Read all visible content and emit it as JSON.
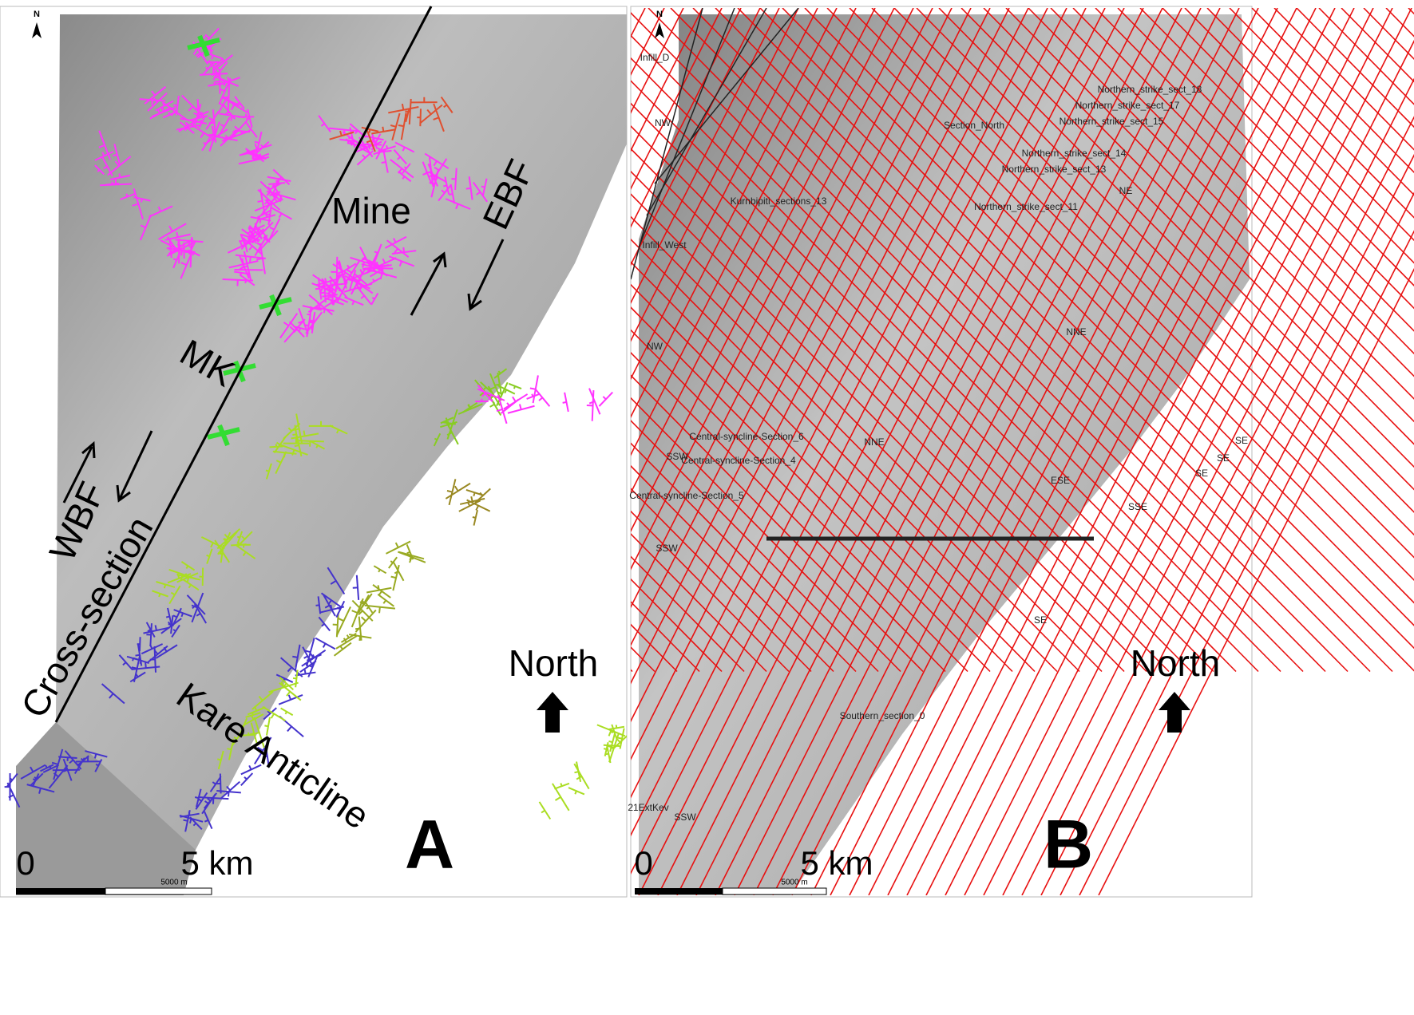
{
  "panels": [
    {
      "letter": "A",
      "north_arrow": "N",
      "north_label": "North",
      "scale": {
        "zero": "0",
        "distance": "5 km",
        "bar": "5000 m"
      },
      "annotations": [
        "Mine",
        "EBF",
        "MK",
        "WBF",
        "Cross-section",
        "Kare Anticline"
      ]
    },
    {
      "letter": "B",
      "north_arrow": "N",
      "north_label": "North",
      "scale": {
        "zero": "0",
        "distance": "5 km",
        "bar": "5000 m"
      },
      "annotations": [
        "Infill_D",
        "Infill_West",
        "Section_North",
        "Northern_strike_sect_18",
        "Northern_strike_sect_17",
        "Northern_strike_sect_15",
        "Northern_strike_sect_14",
        "Northern_strike_sect_13",
        "Northern_strike_sect_11",
        "Kurnbipiti_sections_13",
        "Central-syncline-Section_6",
        "Central-syncline-Section_4",
        "Central-syncline-Section_5",
        "Southern_section_0",
        "21ExtKev",
        "SE",
        "SE",
        "SE",
        "SE",
        "SSE",
        "SSW",
        "SSW",
        "SSW",
        "NW",
        "NW",
        "NNE",
        "NNE",
        "NE",
        "ESE"
      ]
    }
  ]
}
